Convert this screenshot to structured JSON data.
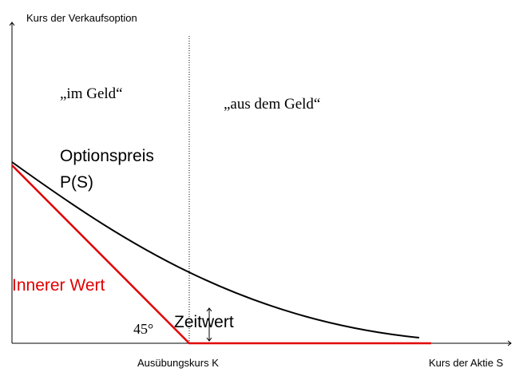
{
  "axes": {
    "y_label": "Kurs der Verkaufsoption",
    "x_label": "Kurs der Aktie S",
    "strike_label": "Ausübungskurs K"
  },
  "regions": {
    "in_the_money": "„im Geld“",
    "out_of_the_money": "„aus dem Geld“"
  },
  "curves": {
    "option_price": [
      "Optionspreis",
      "P(S)"
    ],
    "intrinsic_value": "Innerer Wert",
    "time_value": "Zeitwert"
  },
  "angle": "45°"
}
